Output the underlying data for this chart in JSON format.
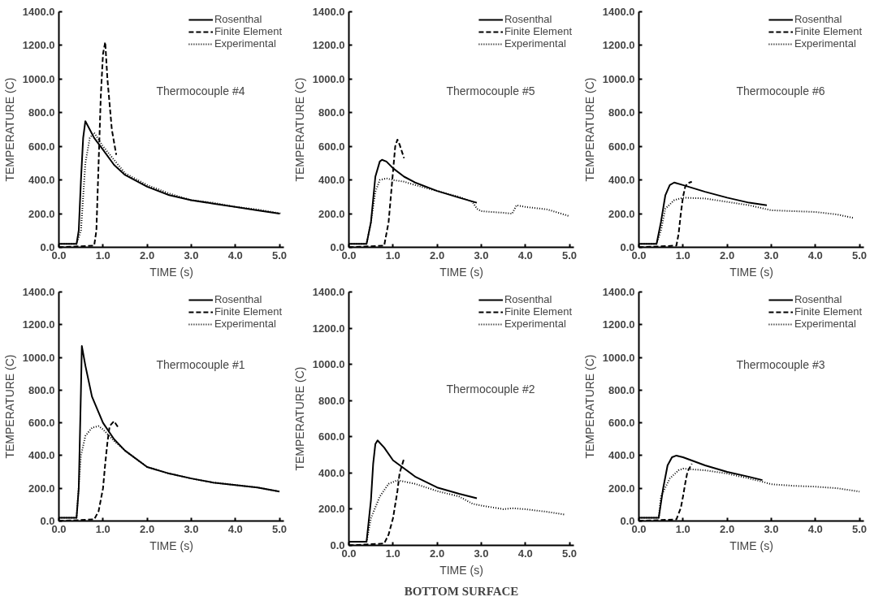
{
  "chart_data": [
    {
      "type": "line",
      "xlabel": "TIME (s)",
      "ylabel": "TEMPERATURE (C)",
      "annotations": [
        "Thermocouple #4"
      ],
      "xlim": [
        0,
        5.1
      ],
      "ylim": [
        0,
        1400
      ],
      "xticks": [
        {
          "value": 0,
          "label": "0.0"
        },
        {
          "value": 1,
          "label": "1.0"
        },
        {
          "value": 2,
          "label": "2.0"
        },
        {
          "value": 3,
          "label": "3.0"
        },
        {
          "value": 4,
          "label": "4.0"
        },
        {
          "value": 5,
          "label": "5.0"
        }
      ],
      "yticks": [
        {
          "value": 0,
          "label": "0.0"
        },
        {
          "value": 200,
          "label": "200.0"
        },
        {
          "value": 400,
          "label": "400.0"
        },
        {
          "value": 600,
          "label": "600.0"
        },
        {
          "value": 800,
          "label": "800.0"
        },
        {
          "value": 1000,
          "label": "1000.0"
        },
        {
          "value": 1200,
          "label": "1200.0"
        },
        {
          "value": 1400,
          "label": "1400.0"
        }
      ],
      "legend": "top right",
      "series": [
        {
          "name": "Rosenthal",
          "color": "#000000",
          "line_style": "solid",
          "x": [
            0,
            0.4,
            0.45,
            0.5,
            0.55,
            0.6,
            0.7,
            0.8,
            1.0,
            1.25,
            1.5,
            2.0,
            2.5,
            3.0,
            3.5,
            4.0,
            4.5,
            5.0
          ],
          "values": [
            20,
            20,
            100,
            400,
            650,
            750,
            700,
            650,
            580,
            490,
            430,
            360,
            310,
            280,
            260,
            240,
            220,
            200
          ]
        },
        {
          "name": "Finite Element",
          "color": "#000000",
          "line_style": "dashed",
          "x": [
            0,
            0.8,
            0.85,
            0.9,
            0.95,
            1.0,
            1.05,
            1.1,
            1.2,
            1.3
          ],
          "values": [
            0,
            10,
            100,
            500,
            900,
            1150,
            1220,
            1000,
            700,
            550
          ]
        },
        {
          "name": "Experimental",
          "color": "#000000",
          "line_style": "dotted",
          "x": [
            0,
            0.4,
            0.5,
            0.6,
            0.7,
            0.8,
            1.0,
            1.5,
            2.0,
            2.5,
            3.0,
            3.5,
            4.0,
            4.5,
            5.05
          ],
          "values": [
            20,
            20,
            100,
            500,
            650,
            680,
            600,
            440,
            370,
            320,
            280,
            265,
            240,
            225,
            200
          ]
        }
      ]
    },
    {
      "type": "line",
      "xlabel": "TIME (s)",
      "ylabel": "TEMPERATURE (C)",
      "annotations": [
        "Thermocouple #5"
      ],
      "xlim": [
        0,
        5.1
      ],
      "ylim": [
        0,
        1400
      ],
      "xticks": [
        {
          "value": 0,
          "label": "0.0"
        },
        {
          "value": 1,
          "label": "1.0"
        },
        {
          "value": 2,
          "label": "2.0"
        },
        {
          "value": 3,
          "label": "3.0"
        },
        {
          "value": 4,
          "label": "4.0"
        },
        {
          "value": 5,
          "label": "5.0"
        }
      ],
      "yticks": [
        {
          "value": 0,
          "label": "0.0"
        },
        {
          "value": 200,
          "label": "200.0"
        },
        {
          "value": 400,
          "label": "400.0"
        },
        {
          "value": 600,
          "label": "600.0"
        },
        {
          "value": 800,
          "label": "800.0"
        },
        {
          "value": 1000,
          "label": "1000.0"
        },
        {
          "value": 1200,
          "label": "1200.0"
        },
        {
          "value": 1400,
          "label": "1400.0"
        }
      ],
      "legend": "top right",
      "series": [
        {
          "name": "Rosenthal",
          "color": "#000000",
          "line_style": "solid",
          "x": [
            0,
            0.4,
            0.5,
            0.6,
            0.7,
            0.75,
            0.85,
            1.0,
            1.25,
            1.5,
            2.0,
            2.5,
            2.9
          ],
          "values": [
            20,
            20,
            150,
            420,
            510,
            520,
            510,
            470,
            420,
            385,
            335,
            295,
            265
          ]
        },
        {
          "name": "Finite Element",
          "color": "#000000",
          "line_style": "dashed",
          "x": [
            0,
            0.8,
            0.9,
            1.0,
            1.05,
            1.1,
            1.15,
            1.25
          ],
          "values": [
            0,
            10,
            150,
            450,
            600,
            640,
            610,
            530
          ]
        },
        {
          "name": "Experimental",
          "color": "#000000",
          "line_style": "dotted",
          "x": [
            0,
            0.4,
            0.5,
            0.6,
            0.7,
            0.85,
            1.0,
            1.25,
            1.5,
            2.0,
            2.5,
            2.8,
            2.9,
            3.0,
            3.5,
            3.7,
            3.8,
            4.0,
            4.5,
            5.0
          ],
          "values": [
            20,
            20,
            150,
            330,
            400,
            410,
            400,
            390,
            370,
            335,
            300,
            270,
            230,
            215,
            205,
            200,
            250,
            240,
            225,
            185
          ]
        }
      ]
    },
    {
      "type": "line",
      "xlabel": "TIME (s)",
      "ylabel": "TEMPERATURE (C)",
      "annotations": [
        "Thermocouple #6"
      ],
      "xlim": [
        0,
        5.1
      ],
      "ylim": [
        0,
        1400
      ],
      "xticks": [
        {
          "value": 0,
          "label": "0.0"
        },
        {
          "value": 1,
          "label": "1.0"
        },
        {
          "value": 2,
          "label": "2.0"
        },
        {
          "value": 3,
          "label": "3.0"
        },
        {
          "value": 4,
          "label": "4.0"
        },
        {
          "value": 5,
          "label": "5.0"
        }
      ],
      "yticks": [
        {
          "value": 0,
          "label": "0.0"
        },
        {
          "value": 200,
          "label": "200.0"
        },
        {
          "value": 400,
          "label": "400.0"
        },
        {
          "value": 600,
          "label": "600.0"
        },
        {
          "value": 800,
          "label": "800.0"
        },
        {
          "value": 1000,
          "label": "1000.0"
        },
        {
          "value": 1200,
          "label": "1200.0"
        },
        {
          "value": 1400,
          "label": "1400.0"
        }
      ],
      "legend": "top right",
      "series": [
        {
          "name": "Rosenthal",
          "color": "#000000",
          "line_style": "solid",
          "x": [
            0,
            0.4,
            0.5,
            0.6,
            0.7,
            0.8,
            1.0,
            1.5,
            2.0,
            2.5,
            2.9
          ],
          "values": [
            20,
            20,
            150,
            310,
            370,
            385,
            370,
            330,
            295,
            265,
            250
          ]
        },
        {
          "name": "Finite Element",
          "color": "#000000",
          "line_style": "dashed",
          "x": [
            0,
            0.85,
            0.9,
            0.95,
            1.0,
            1.05,
            1.1,
            1.2
          ],
          "values": [
            0,
            10,
            80,
            200,
            300,
            360,
            380,
            390
          ]
        },
        {
          "name": "Experimental",
          "color": "#000000",
          "line_style": "dotted",
          "x": [
            0,
            0.4,
            0.5,
            0.6,
            0.8,
            1.0,
            1.5,
            2.0,
            2.5,
            3.0,
            3.5,
            4.0,
            4.5,
            4.85
          ],
          "values": [
            20,
            20,
            100,
            230,
            280,
            295,
            290,
            270,
            250,
            220,
            215,
            210,
            195,
            175
          ]
        }
      ]
    },
    {
      "type": "line",
      "xlabel": "TIME (s)",
      "ylabel": "TEMPERATURE (C)",
      "annotations": [
        "Thermocouple #1"
      ],
      "xlim": [
        0,
        5.1
      ],
      "ylim": [
        0,
        1400
      ],
      "xticks": [
        {
          "value": 0,
          "label": "0.0"
        },
        {
          "value": 1,
          "label": "1.0"
        },
        {
          "value": 2,
          "label": "2.0"
        },
        {
          "value": 3,
          "label": "3.0"
        },
        {
          "value": 4,
          "label": "4.0"
        },
        {
          "value": 5,
          "label": "5.0"
        }
      ],
      "yticks": [
        {
          "value": 0,
          "label": "0.0"
        },
        {
          "value": 200,
          "label": "200.0"
        },
        {
          "value": 400,
          "label": "400.0"
        },
        {
          "value": 600,
          "label": "600.0"
        },
        {
          "value": 800,
          "label": "800.0"
        },
        {
          "value": 1000,
          "label": "1000.0"
        },
        {
          "value": 1200,
          "label": "1200.0"
        },
        {
          "value": 1400,
          "label": "1400.0"
        }
      ],
      "legend": "top right",
      "series": [
        {
          "name": "Rosenthal",
          "color": "#000000",
          "line_style": "solid",
          "x": [
            0,
            0.4,
            0.45,
            0.5,
            0.52,
            0.6,
            0.75,
            1.0,
            1.25,
            1.5,
            2.0,
            2.5,
            3.0,
            3.5,
            4.0,
            4.5,
            5.0
          ],
          "values": [
            20,
            20,
            200,
            800,
            1070,
            950,
            760,
            600,
            500,
            430,
            330,
            290,
            260,
            235,
            220,
            205,
            180
          ]
        },
        {
          "name": "Finite Element",
          "color": "#000000",
          "line_style": "dashed",
          "x": [
            0,
            0.8,
            0.9,
            1.0,
            1.05,
            1.1,
            1.15,
            1.25,
            1.35
          ],
          "values": [
            0,
            10,
            60,
            200,
            350,
            480,
            580,
            610,
            570
          ]
        },
        {
          "name": "Experimental",
          "color": "#000000",
          "line_style": "dotted",
          "x": [
            0,
            0.4,
            0.5,
            0.6,
            0.75,
            0.9,
            1.0,
            1.25,
            1.5,
            2.0,
            2.5,
            3.0,
            3.5,
            4.0,
            4.5,
            5.0
          ],
          "values": [
            20,
            20,
            400,
            520,
            570,
            580,
            560,
            490,
            430,
            330,
            290,
            260,
            235,
            220,
            205,
            180
          ]
        }
      ]
    },
    {
      "type": "line",
      "xlabel": "TIME (s)",
      "ylabel": "TEMPERATURE (C)",
      "annotations": [
        "Thermocouple #2",
        "BOTTOM SURFACE"
      ],
      "xlim": [
        0,
        5.1
      ],
      "ylim": [
        0,
        1400
      ],
      "xticks": [
        {
          "value": 0,
          "label": "0.0"
        },
        {
          "value": 1,
          "label": "1.0"
        },
        {
          "value": 2,
          "label": "2.0"
        },
        {
          "value": 3,
          "label": "3.0"
        },
        {
          "value": 4,
          "label": "4.0"
        },
        {
          "value": 5,
          "label": "5.0"
        }
      ],
      "yticks": [
        {
          "value": 0,
          "label": "0.0"
        },
        {
          "value": 200,
          "label": "200.0"
        },
        {
          "value": 400,
          "label": "400.0"
        },
        {
          "value": 600,
          "label": "600.0"
        },
        {
          "value": 800,
          "label": "800.0"
        },
        {
          "value": 1000,
          "label": "1000.0"
        },
        {
          "value": 1200,
          "label": "1200.0"
        },
        {
          "value": 1400,
          "label": "1400.0"
        }
      ],
      "legend": "top right",
      "series": [
        {
          "name": "Rosenthal",
          "color": "#000000",
          "line_style": "solid",
          "x": [
            0,
            0.4,
            0.5,
            0.55,
            0.6,
            0.65,
            0.8,
            1.0,
            1.5,
            2.0,
            2.5,
            2.9
          ],
          "values": [
            20,
            20,
            250,
            450,
            560,
            580,
            540,
            470,
            380,
            320,
            285,
            260
          ]
        },
        {
          "name": "Finite Element",
          "color": "#000000",
          "line_style": "dashed",
          "x": [
            0,
            0.8,
            0.9,
            1.0,
            1.1,
            1.15,
            1.25
          ],
          "values": [
            0,
            10,
            60,
            150,
            300,
            400,
            480
          ]
        },
        {
          "name": "Experimental",
          "color": "#000000",
          "line_style": "dotted",
          "x": [
            0,
            0.4,
            0.5,
            0.7,
            0.9,
            1.1,
            1.5,
            2.0,
            2.5,
            2.8,
            3.0,
            3.5,
            3.7,
            4.0,
            4.5,
            4.9
          ],
          "values": [
            20,
            20,
            150,
            270,
            340,
            360,
            340,
            300,
            270,
            230,
            220,
            200,
            205,
            200,
            185,
            170
          ]
        }
      ]
    },
    {
      "type": "line",
      "xlabel": "TIME (s)",
      "ylabel": "TEMPERATURE (C)",
      "annotations": [
        "Thermocouple #3"
      ],
      "xlim": [
        0,
        5.1
      ],
      "ylim": [
        0,
        1400
      ],
      "xticks": [
        {
          "value": 0,
          "label": "0.0"
        },
        {
          "value": 1,
          "label": "1.0"
        },
        {
          "value": 2,
          "label": "2.0"
        },
        {
          "value": 3,
          "label": "3.0"
        },
        {
          "value": 4,
          "label": "4.0"
        },
        {
          "value": 5,
          "label": "5.0"
        }
      ],
      "yticks": [
        {
          "value": 0,
          "label": "0.0"
        },
        {
          "value": 200,
          "label": "200.0"
        },
        {
          "value": 400,
          "label": "400.0"
        },
        {
          "value": 600,
          "label": "600.0"
        },
        {
          "value": 800,
          "label": "800.0"
        },
        {
          "value": 1000,
          "label": "1000.0"
        },
        {
          "value": 1200,
          "label": "1200.0"
        },
        {
          "value": 1400,
          "label": "1400.0"
        }
      ],
      "legend": "top right",
      "series": [
        {
          "name": "Rosenthal",
          "color": "#000000",
          "line_style": "solid",
          "x": [
            0,
            0.45,
            0.55,
            0.65,
            0.75,
            0.85,
            1.0,
            1.5,
            2.0,
            2.5,
            2.8
          ],
          "values": [
            20,
            20,
            200,
            340,
            390,
            400,
            390,
            340,
            300,
            270,
            250
          ]
        },
        {
          "name": "Finite Element",
          "color": "#000000",
          "line_style": "dashed",
          "x": [
            0,
            0.85,
            0.95,
            1.0,
            1.05,
            1.1,
            1.2
          ],
          "values": [
            0,
            10,
            80,
            150,
            230,
            300,
            350
          ]
        },
        {
          "name": "Experimental",
          "color": "#000000",
          "line_style": "dotted",
          "x": [
            0,
            0.45,
            0.5,
            0.7,
            0.9,
            1.0,
            1.5,
            2.0,
            2.5,
            2.8,
            3.0,
            3.5,
            4.0,
            4.5,
            5.0
          ],
          "values": [
            20,
            20,
            150,
            260,
            310,
            320,
            310,
            290,
            260,
            240,
            225,
            215,
            210,
            200,
            180
          ]
        }
      ]
    }
  ]
}
